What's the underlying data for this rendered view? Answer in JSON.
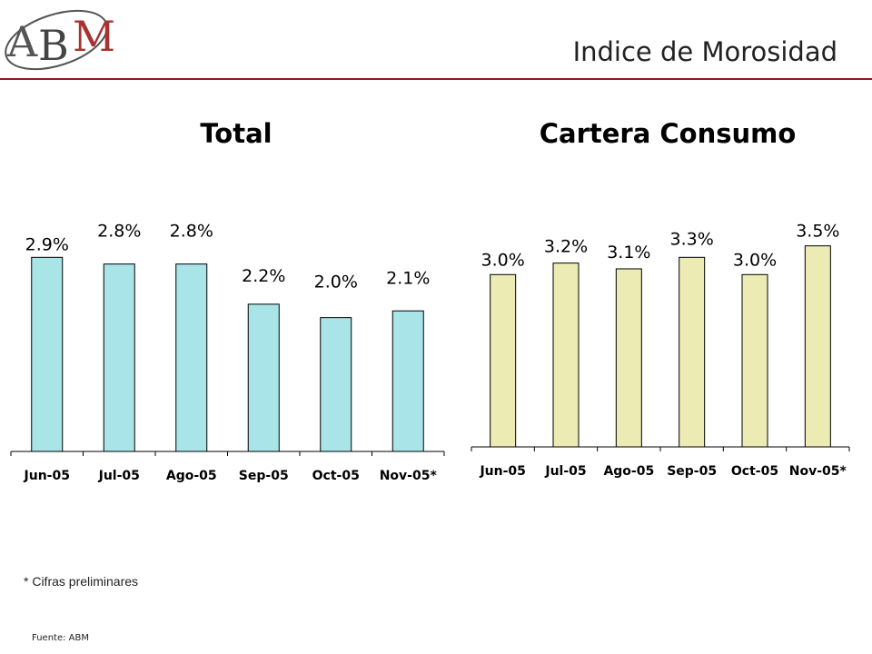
{
  "header": {
    "logo_text": "ABM",
    "title": "Indice de Morosidad",
    "accent_color": "#8b1c1c"
  },
  "chart_data": [
    {
      "type": "bar",
      "title": "Total",
      "categories": [
        "Jun-05",
        "Jul-05",
        "Ago-05",
        "Sep-05",
        "Oct-05",
        "Nov-05*"
      ],
      "values": [
        2.9,
        2.8,
        2.8,
        2.2,
        2.0,
        2.1
      ],
      "value_labels": [
        "2.9%",
        "2.8%",
        "2.8%",
        "2.2%",
        "2.0%",
        "2.1%"
      ],
      "unit": "%",
      "ylim": [
        0,
        3.8
      ],
      "bar_color": "#a8e4e8",
      "grid": false,
      "legend": "none"
    },
    {
      "type": "bar",
      "title": "Cartera Consumo",
      "categories": [
        "Jun-05",
        "Jul-05",
        "Ago-05",
        "Sep-05",
        "Oct-05",
        "Nov-05*"
      ],
      "values": [
        3.0,
        3.2,
        3.1,
        3.3,
        3.0,
        3.5
      ],
      "value_labels": [
        "3.0%",
        "3.2%",
        "3.1%",
        "3.3%",
        "3.0%",
        "3.5%"
      ],
      "unit": "%",
      "ylim": [
        0,
        5.25
      ],
      "bar_color": "#ecebb4",
      "grid": false,
      "legend": "none"
    }
  ],
  "footnote": "* Cifras preliminares",
  "source": "Fuente: ABM"
}
